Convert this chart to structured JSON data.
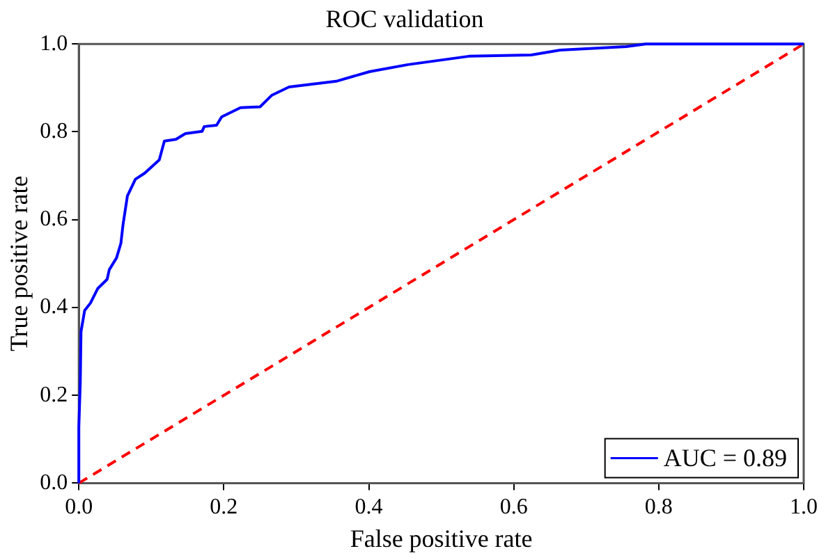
{
  "chart_data": {
    "type": "line",
    "title": "ROC validation",
    "xlabel": "False positive rate",
    "ylabel": "True positive rate",
    "xlim": [
      0,
      1
    ],
    "ylim": [
      0,
      1
    ],
    "xticks": [
      {
        "value": 0,
        "label": "0.0"
      },
      {
        "value": 0.2,
        "label": "0.2"
      },
      {
        "value": 0.4,
        "label": "0.4"
      },
      {
        "value": 0.6,
        "label": "0.6"
      },
      {
        "value": 0.8,
        "label": "0.8"
      },
      {
        "value": 1,
        "label": "1.0"
      }
    ],
    "yticks": [
      {
        "value": 0,
        "label": "0.0"
      },
      {
        "value": 0.2,
        "label": "0.2"
      },
      {
        "value": 0.4,
        "label": "0.4"
      },
      {
        "value": 0.6,
        "label": "0.6"
      },
      {
        "value": 0.8,
        "label": "0.8"
      },
      {
        "value": 1,
        "label": "1.0"
      }
    ],
    "grid": false,
    "legend": "bottom right",
    "marker": "none",
    "series": [
      {
        "name": "AUC = 0.89",
        "color": "#0000ff",
        "line_style": "solid",
        "x": [
          0,
          0,
          0.002,
          0.003,
          0.008,
          0.016,
          0.026,
          0.039,
          0.042,
          0.052,
          0.058,
          0.061,
          0.067,
          0.078,
          0.091,
          0.111,
          0.118,
          0.134,
          0.147,
          0.17,
          0.173,
          0.19,
          0.197,
          0.223,
          0.25,
          0.266,
          0.29,
          0.355,
          0.401,
          0.454,
          0.538,
          0.624,
          0.664,
          0.755,
          0.782,
          0.926,
          1
        ],
        "values": [
          0,
          0.127,
          0.23,
          0.345,
          0.393,
          0.41,
          0.443,
          0.464,
          0.486,
          0.513,
          0.546,
          0.589,
          0.654,
          0.692,
          0.706,
          0.736,
          0.779,
          0.783,
          0.796,
          0.801,
          0.812,
          0.815,
          0.834,
          0.855,
          0.857,
          0.883,
          0.902,
          0.915,
          0.937,
          0.953,
          0.972,
          0.975,
          0.986,
          0.994,
          1,
          1,
          1
        ]
      },
      {
        "color": "#ff0000",
        "line_style": "dashed",
        "x": [
          0,
          1
        ],
        "values": [
          0,
          1
        ]
      }
    ]
  }
}
